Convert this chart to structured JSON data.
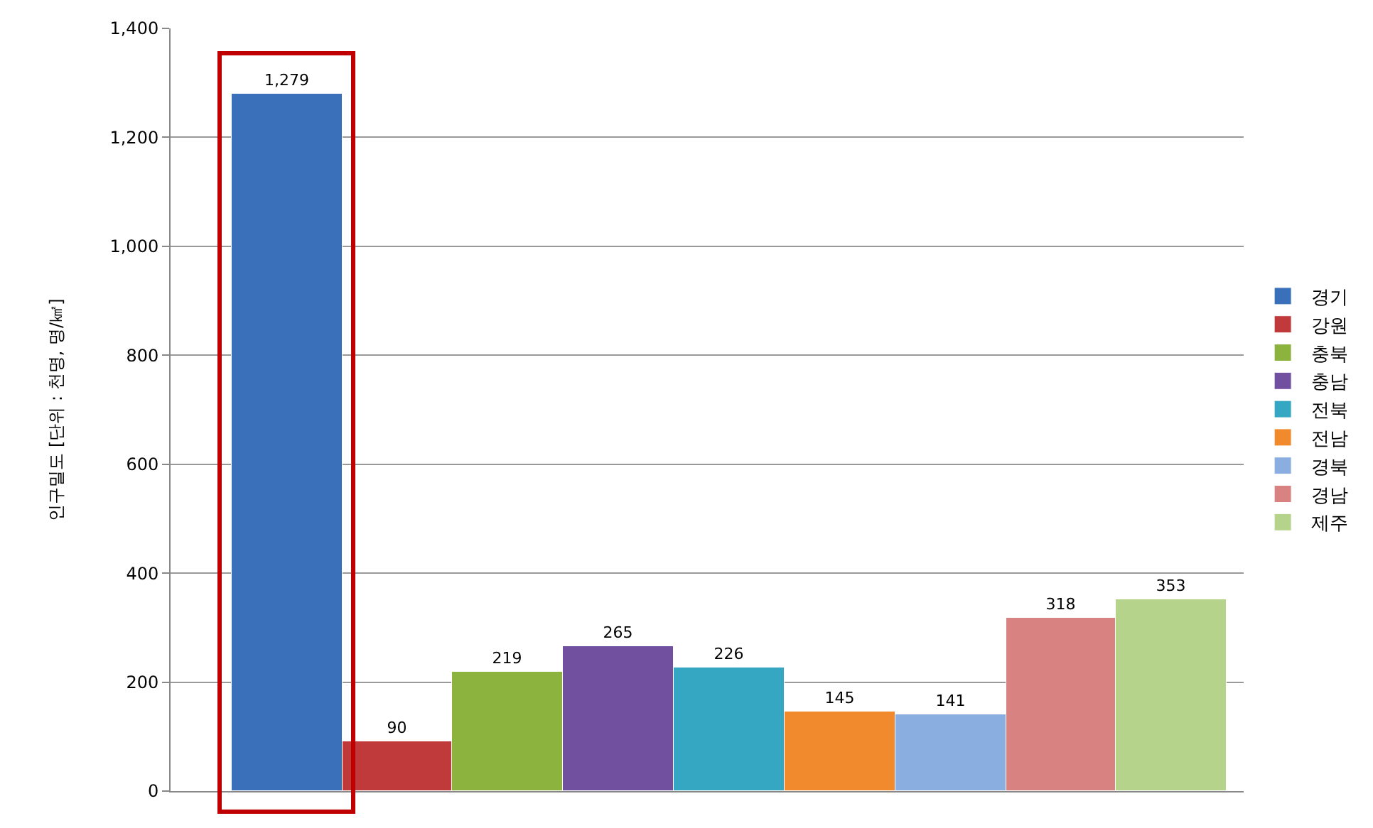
{
  "chart_data": {
    "type": "bar",
    "ylabel": "인구밀도 [단위 : 천명, 명/㎢]",
    "categories": [
      null,
      null,
      null,
      null,
      null,
      null,
      null,
      null,
      null
    ],
    "series": [
      {
        "name": "경기",
        "color": "#3a70b9",
        "values": [
          1279,
          null,
          null,
          null,
          null,
          null,
          null,
          null,
          null
        ],
        "value_labels": [
          "1,279",
          null,
          null,
          null,
          null,
          null,
          null,
          null,
          null
        ]
      },
      {
        "name": "강원",
        "color": "#c0393b",
        "values": [
          null,
          90,
          null,
          null,
          null,
          null,
          null,
          null,
          null
        ],
        "value_labels": [
          null,
          "90",
          null,
          null,
          null,
          null,
          null,
          null,
          null
        ]
      },
      {
        "name": "충북",
        "color": "#8db33f",
        "values": [
          null,
          null,
          219,
          null,
          null,
          null,
          null,
          null,
          null
        ],
        "value_labels": [
          null,
          null,
          "219",
          null,
          null,
          null,
          null,
          null,
          null
        ]
      },
      {
        "name": "충남",
        "color": "#7150a0",
        "values": [
          null,
          null,
          null,
          265,
          null,
          null,
          null,
          null,
          null
        ],
        "value_labels": [
          null,
          null,
          null,
          "265",
          null,
          null,
          null,
          null,
          null
        ]
      },
      {
        "name": "전북",
        "color": "#35a7c2",
        "values": [
          null,
          null,
          null,
          null,
          226,
          null,
          null,
          null,
          null
        ],
        "value_labels": [
          null,
          null,
          null,
          null,
          "226",
          null,
          null,
          null,
          null
        ]
      },
      {
        "name": "전남",
        "color": "#f08a2c",
        "values": [
          null,
          null,
          null,
          null,
          null,
          145,
          null,
          null,
          null
        ],
        "value_labels": [
          null,
          null,
          null,
          null,
          null,
          "145",
          null,
          null,
          null
        ]
      },
      {
        "name": "경북",
        "color": "#8aaee0",
        "values": [
          null,
          null,
          null,
          null,
          null,
          null,
          141,
          null,
          null
        ],
        "value_labels": [
          null,
          null,
          null,
          null,
          null,
          null,
          "141",
          null,
          null
        ]
      },
      {
        "name": "경남",
        "color": "#d98282",
        "values": [
          null,
          null,
          null,
          null,
          null,
          null,
          null,
          318,
          null
        ],
        "value_labels": [
          null,
          null,
          null,
          null,
          null,
          null,
          null,
          "318",
          null
        ]
      },
      {
        "name": "제주",
        "color": "#b5d38a",
        "values": [
          null,
          null,
          null,
          null,
          null,
          null,
          null,
          null,
          353
        ],
        "value_labels": [
          null,
          null,
          null,
          null,
          null,
          null,
          null,
          null,
          "353"
        ]
      }
    ],
    "ylim": [
      0,
      1400
    ],
    "yticks": [
      {
        "value": 0,
        "label": "0"
      },
      {
        "value": 200,
        "label": "200"
      },
      {
        "value": 400,
        "label": "400"
      },
      {
        "value": 600,
        "label": "600"
      },
      {
        "value": 800,
        "label": "800"
      },
      {
        "value": 1000,
        "label": "1,000"
      },
      {
        "value": 1200,
        "label": "1,200"
      },
      {
        "value": 1400,
        "label": "1,400"
      }
    ],
    "grid": "y",
    "legend": "right"
  }
}
